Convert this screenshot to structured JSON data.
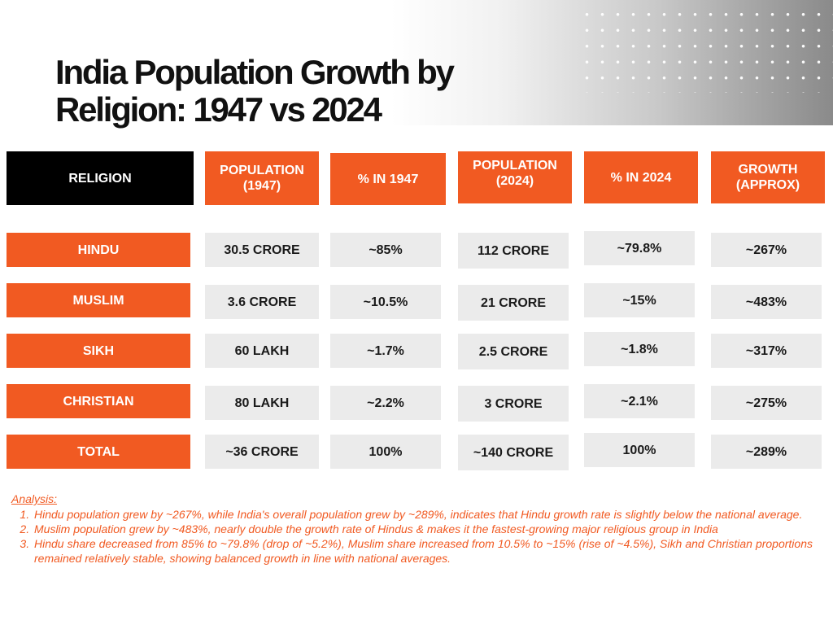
{
  "title": {
    "line1": "India Population Growth by",
    "line2": "Religion: 1947 vs 2024"
  },
  "colors": {
    "accent": "#f15a22",
    "header_dark": "#000000",
    "cell_bg": "#ebebeb"
  },
  "table": {
    "headers": [
      {
        "line1": "RELIGION",
        "line2": ""
      },
      {
        "line1": "POPULATION",
        "line2": "(1947)"
      },
      {
        "line1": "% IN 1947",
        "line2": ""
      },
      {
        "line1": "POPULATION",
        "line2": "(2024)"
      },
      {
        "line1": "% IN 2024",
        "line2": ""
      },
      {
        "line1": "GROWTH",
        "line2": "(APPROX)"
      }
    ],
    "rows": [
      [
        "HINDU",
        "30.5 CRORE",
        "~85%",
        "112 CRORE",
        "~79.8%",
        "~267%"
      ],
      [
        "MUSLIM",
        "3.6 CRORE",
        "~10.5%",
        "21 CRORE",
        "~15%",
        "~483%"
      ],
      [
        "SIKH",
        "60 LAKH",
        "~1.7%",
        "2.5 CRORE",
        "~1.8%",
        "~317%"
      ],
      [
        "CHRISTIAN",
        "80 LAKH",
        "~2.2%",
        "3 CRORE",
        "~2.1%",
        "~275%"
      ],
      [
        "TOTAL",
        "~36 CRORE",
        "100%",
        "~140 CRORE",
        "100%",
        "~289%"
      ]
    ]
  },
  "analysis": {
    "title": "Analysis:",
    "items": [
      "Hindu population grew by ~267%, while India's overall population grew by ~289%, indicates that Hindu growth rate is slightly below the national average.",
      "Muslim population grew by ~483%, nearly double the growth rate of Hindus & makes it the fastest-growing major religious group in India",
      "Hindu share decreased from 85% to ~79.8% (drop of ~5.2%), Muslim share increased from 10.5% to ~15% (rise of ~4.5%), Sikh and Christian proportions remained relatively stable, showing balanced growth in line with national averages."
    ]
  }
}
